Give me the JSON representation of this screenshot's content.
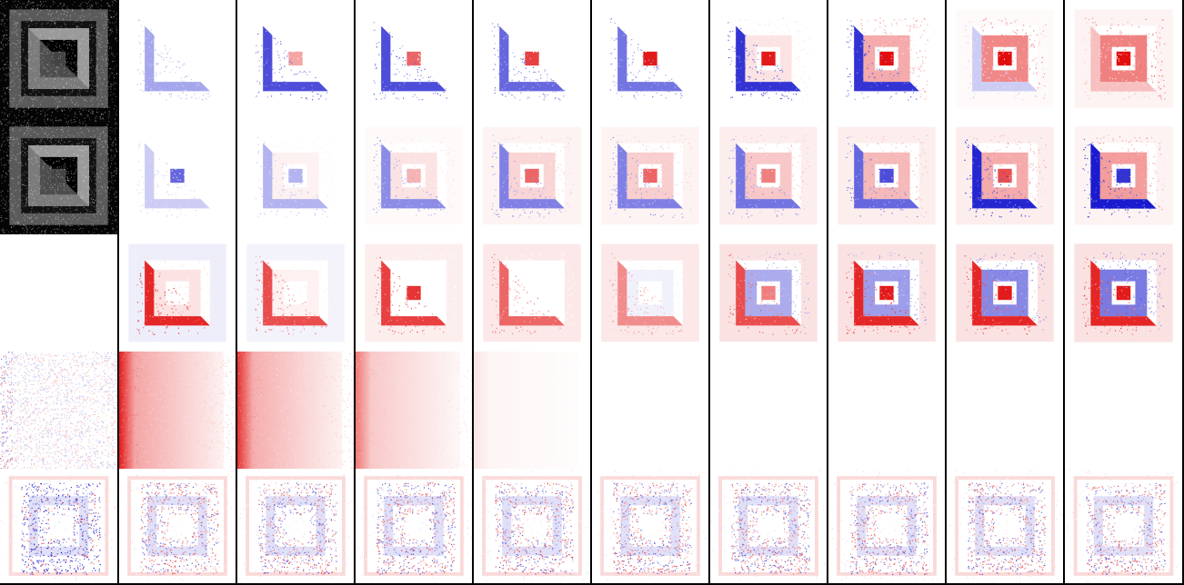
{
  "figure": {
    "rows": 5,
    "columns": 10,
    "colors": {
      "background": "#ffffff",
      "separator": "#000000",
      "positive": "#e00000",
      "negative": "#0000c8",
      "grayscale_bg": "#050505",
      "grayscale_fg": "#d8d8d8"
    },
    "row_styles": [
      "grayscale-pattern",
      "grayscale-pattern",
      "diverging-map",
      "diverging-smear",
      "diverging-noise"
    ],
    "tiles": [
      [
        {
          "kind": "gray",
          "level": 1.0
        },
        {
          "kind": "map",
          "tri": -0.35,
          "frame": 0.0,
          "mid": 0.0,
          "center": 0.0
        },
        {
          "kind": "map",
          "tri": -0.7,
          "frame": 0.0,
          "mid": 0.0,
          "center": 0.35
        },
        {
          "kind": "map",
          "tri": -0.7,
          "frame": 0.0,
          "mid": 0.0,
          "center": 0.6
        },
        {
          "kind": "map",
          "tri": -0.6,
          "frame": 0.0,
          "mid": 0.0,
          "center": 0.75
        },
        {
          "kind": "map",
          "tri": -0.55,
          "frame": 0.0,
          "mid": 0.0,
          "center": 0.9
        },
        {
          "kind": "map",
          "tri": -0.8,
          "frame": 0.0,
          "mid": 0.2,
          "center": 0.9
        },
        {
          "kind": "map",
          "tri": -0.8,
          "frame": 0.0,
          "mid": 0.6,
          "center": 0.95
        },
        {
          "kind": "map",
          "tri": -0.2,
          "frame": 0.05,
          "mid": 0.85,
          "center": 0.95
        },
        {
          "kind": "map",
          "tri": 0.25,
          "frame": 0.1,
          "mid": 0.9,
          "center": 0.95
        }
      ],
      [
        {
          "kind": "gray",
          "level": 1.0
        },
        {
          "kind": "map",
          "tri": -0.2,
          "frame": 0.0,
          "mid": 0.0,
          "center": -0.6
        },
        {
          "kind": "map",
          "tri": -0.3,
          "frame": 0.0,
          "mid": 0.1,
          "center": -0.3
        },
        {
          "kind": "map",
          "tri": -0.45,
          "frame": 0.05,
          "mid": 0.2,
          "center": 0.3
        },
        {
          "kind": "map",
          "tri": -0.5,
          "frame": 0.1,
          "mid": 0.3,
          "center": 0.6
        },
        {
          "kind": "map",
          "tri": -0.5,
          "frame": 0.1,
          "mid": 0.35,
          "center": 0.6
        },
        {
          "kind": "map",
          "tri": -0.55,
          "frame": 0.15,
          "mid": 0.4,
          "center": 0.5
        },
        {
          "kind": "map",
          "tri": -0.6,
          "frame": 0.15,
          "mid": 0.5,
          "center": -0.7
        },
        {
          "kind": "map",
          "tri": -0.85,
          "frame": 0.15,
          "mid": 0.6,
          "center": 0.7
        },
        {
          "kind": "map",
          "tri": -0.9,
          "frame": 0.1,
          "mid": 0.7,
          "center": -0.8
        }
      ],
      [
        {
          "kind": "blank"
        },
        {
          "kind": "map",
          "tri": 0.85,
          "frame": -0.15,
          "mid": 0.2,
          "center": 0.0
        },
        {
          "kind": "map",
          "tri": 0.7,
          "frame": -0.1,
          "mid": 0.1,
          "center": 0.0
        },
        {
          "kind": "map",
          "tri": 0.75,
          "frame": 0.15,
          "mid": 0.0,
          "center": 0.8
        },
        {
          "kind": "map",
          "tri": 0.6,
          "frame": 0.2,
          "mid": 0.0,
          "center": 0.0
        },
        {
          "kind": "map",
          "tri": 0.45,
          "frame": 0.2,
          "mid": -0.1,
          "center": 0.0
        },
        {
          "kind": "map",
          "tri": 0.7,
          "frame": 0.25,
          "mid": -0.6,
          "center": 0.5
        },
        {
          "kind": "map",
          "tri": 0.85,
          "frame": 0.25,
          "mid": -0.7,
          "center": 0.9
        },
        {
          "kind": "map",
          "tri": 0.85,
          "frame": 0.25,
          "mid": -0.85,
          "center": 0.9
        },
        {
          "kind": "map",
          "tri": 0.85,
          "frame": 0.25,
          "mid": -0.95,
          "center": 0.9
        }
      ],
      [
        {
          "kind": "noise",
          "strength": 0.55,
          "bias": 0.0
        },
        {
          "kind": "smear",
          "strength": 1.0
        },
        {
          "kind": "smear",
          "strength": 0.9
        },
        {
          "kind": "smear",
          "strength": 0.6
        },
        {
          "kind": "smear",
          "strength": 0.12
        },
        {
          "kind": "smear",
          "strength": 0.0
        },
        {
          "kind": "smear",
          "strength": 0.0
        },
        {
          "kind": "smear",
          "strength": 0.0
        },
        {
          "kind": "smear",
          "strength": 0.0
        },
        {
          "kind": "smear",
          "strength": 0.0
        }
      ],
      [
        {
          "kind": "frame-noise",
          "strength": 0.9,
          "bias": -0.5
        },
        {
          "kind": "frame-noise",
          "strength": 0.7,
          "bias": 0.1
        },
        {
          "kind": "frame-noise",
          "strength": 0.7,
          "bias": 0.1
        },
        {
          "kind": "frame-noise",
          "strength": 0.7,
          "bias": 0.1
        },
        {
          "kind": "frame-noise",
          "strength": 0.7,
          "bias": 0.1
        },
        {
          "kind": "frame-noise",
          "strength": 0.7,
          "bias": 0.1
        },
        {
          "kind": "frame-noise",
          "strength": 0.7,
          "bias": 0.1
        },
        {
          "kind": "frame-noise",
          "strength": 0.7,
          "bias": 0.1
        },
        {
          "kind": "frame-noise",
          "strength": 0.7,
          "bias": 0.1
        },
        {
          "kind": "frame-noise",
          "strength": 0.7,
          "bias": 0.1
        }
      ]
    ]
  }
}
